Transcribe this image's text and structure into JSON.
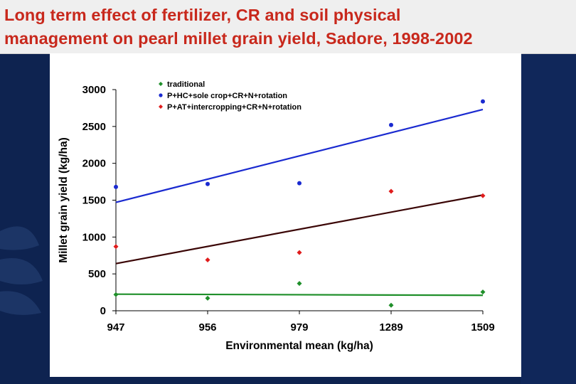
{
  "slide": {
    "title_line1": "Long term effect of fertilizer, CR and soil physical",
    "title_line2": "management on pearl millet grain yield, Sadore, 1998-2002",
    "background_color": "#0e2350",
    "title_color": "#c8281c"
  },
  "chart_data": {
    "type": "scatter",
    "title": "",
    "xlabel": "Environmental mean (kg/ha)",
    "ylabel": "Millet grain yield (kg/ha)",
    "categories": [
      "947",
      "956",
      "979",
      "1289",
      "1509"
    ],
    "ylim": [
      0,
      3000
    ],
    "yticks": [
      0,
      500,
      1000,
      1500,
      2000,
      2500,
      3000
    ],
    "grid": false,
    "legend_position": "top-left",
    "series": [
      {
        "name": "traditional",
        "color": "#1f8f2a",
        "marker": "diamond",
        "values": [
          220,
          170,
          370,
          75,
          255
        ],
        "trendline": [
          225,
          210
        ]
      },
      {
        "name": "P+HC+sole crop+CR+N+rotation",
        "color": "#1a2ad0",
        "marker": "circle",
        "values": [
          1680,
          1720,
          1730,
          2520,
          2840
        ],
        "trendline": [
          1470,
          2730
        ],
        "trend_color": "#1a2ad0"
      },
      {
        "name": "P+AT+intercropping+CR+N+rotation",
        "color": "#e01c1c",
        "marker": "diamond",
        "values": [
          870,
          690,
          790,
          1620,
          1560
        ],
        "trendline": [
          640,
          1570
        ],
        "trend_color": "#3a0505"
      }
    ]
  }
}
